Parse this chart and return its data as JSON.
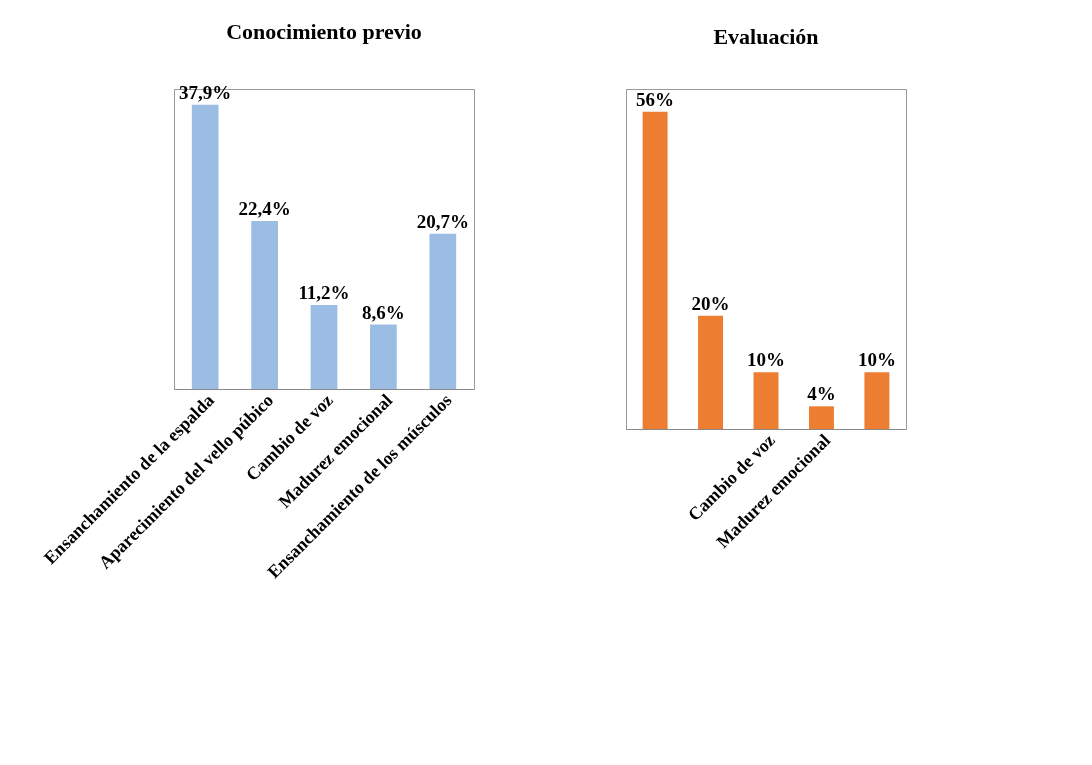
{
  "chart_data": [
    {
      "type": "bar",
      "title": "Conocimiento previo",
      "categories": [
        "Ensanchamiento de la espalda",
        "Aparecimiento del vello púbico",
        "Cambio de voz",
        "Madurez emocional",
        "Ensanchamiento de los músculos"
      ],
      "values": [
        37.9,
        22.4,
        11.2,
        8.6,
        20.7
      ],
      "value_labels": [
        "37,9%",
        "22,4%",
        "11,2%",
        "8,6%",
        "20,7%"
      ],
      "color": "#9cbde3"
    },
    {
      "type": "bar",
      "title": "Evaluación",
      "categories": [
        null,
        null,
        "Cambio de voz",
        "Madurez emocional",
        null
      ],
      "values": [
        56,
        20,
        10,
        4,
        10
      ],
      "value_labels": [
        "56%",
        "20%",
        "10%",
        "4%",
        "10%"
      ],
      "color": "#ed7d31"
    }
  ]
}
